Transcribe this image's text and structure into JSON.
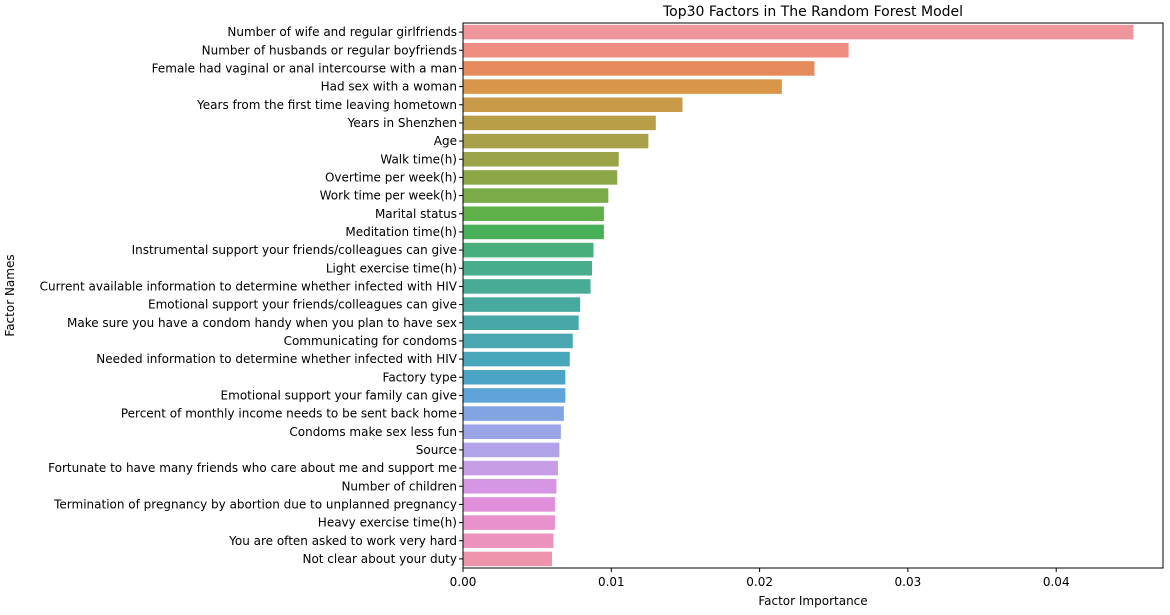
{
  "chart_data": {
    "type": "bar",
    "orientation": "horizontal",
    "title": "Top30 Factors in The Random Forest Model",
    "xlabel": "Factor Importance",
    "ylabel": "Factor Names",
    "xlim": [
      0,
      0.0472
    ],
    "xticks": [
      0,
      0.01,
      0.02,
      0.03,
      0.04
    ],
    "xtick_labels": [
      "0.00",
      "0.01",
      "0.02",
      "0.03",
      "0.04"
    ],
    "grid": false,
    "legend": "none",
    "categories": [
      "Number of wife and regular girlfriends",
      "Number of husbands or regular boyfriends",
      "Female had vaginal or anal intercourse with a man",
      "Had sex with a woman",
      "Years from the first time leaving hometown",
      "Years in Shenzhen",
      "Age",
      "Walk time(h)",
      "Overtime per week(h)",
      "Work time per week(h)",
      "Marital status",
      "Meditation time(h)",
      "Instrumental support your friends/colleagues can give",
      "Light exercise time(h)",
      "Current available information to determine whether infected with HIV",
      "Emotional support your friends/colleagues can give",
      "Make sure you have a condom handy when you plan to have sex",
      "Communicating for condoms",
      "Needed information to determine whether infected with HIV",
      "Factory type",
      "Emotional support your family can give",
      "Percent of monthly income needs to be sent back home",
      "Condoms make sex less fun",
      "Source",
      "Fortunate to have many friends who care about me and support me",
      "Number of children",
      "Termination of pregnancy by abortion due to unplanned pregnancy",
      "Heavy exercise time(h)",
      "You are often asked to work very hard",
      "Not clear about your duty"
    ],
    "values": [
      0.0452,
      0.026,
      0.0237,
      0.0215,
      0.0148,
      0.013,
      0.0125,
      0.0105,
      0.0104,
      0.0098,
      0.0095,
      0.0095,
      0.0088,
      0.0087,
      0.0086,
      0.0079,
      0.0078,
      0.0074,
      0.0072,
      0.0069,
      0.0069,
      0.0068,
      0.0066,
      0.0065,
      0.0064,
      0.0063,
      0.0062,
      0.0062,
      0.0061,
      0.006
    ],
    "colors": [
      "#ee969c",
      "#ed8e80",
      "#e48a5b",
      "#d99649",
      "#c99a48",
      "#b99e48",
      "#a9a149",
      "#9aa348",
      "#8ba748",
      "#79ab48",
      "#5fb048",
      "#48b059",
      "#48ae7c",
      "#48ad8c",
      "#48ab96",
      "#48aa9f",
      "#48a8a8",
      "#48a7b1",
      "#48a6ba",
      "#4ba3c6",
      "#5ea4d9",
      "#82a4e3",
      "#9ca4e8",
      "#b2a2e8",
      "#c79ee6",
      "#d597e3",
      "#e28fdb",
      "#e891cd",
      "#ec93bd",
      "#ee95ad"
    ]
  }
}
